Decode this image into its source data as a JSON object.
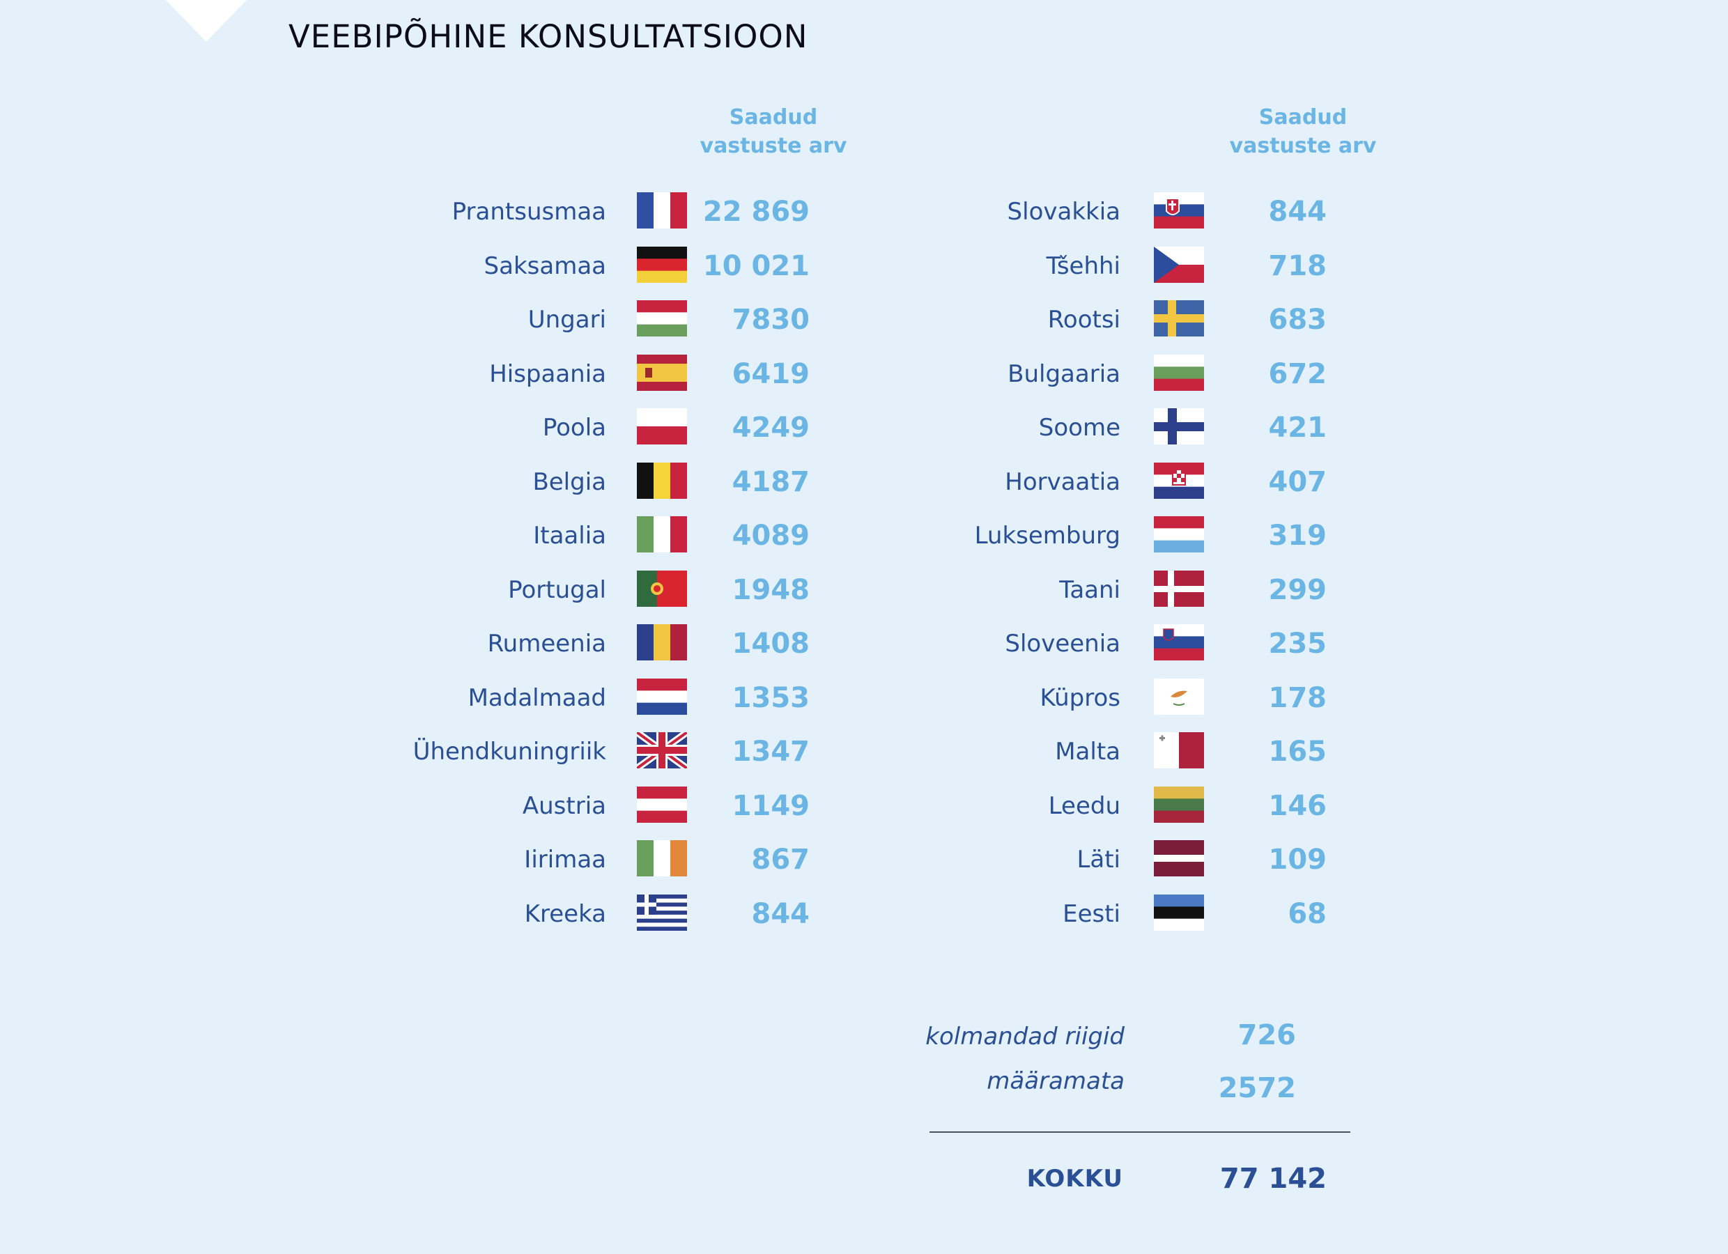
{
  "title": "VEEBIPÕHINE KONSULTATSIOON",
  "column_header": {
    "line1": "Saadud",
    "line2": "vastuste arv"
  },
  "left_column": [
    {
      "country": "Prantsusmaa",
      "value": "22 869",
      "flag": "flag-france-icon"
    },
    {
      "country": "Saksamaa",
      "value": "10 021",
      "flag": "flag-germany-icon"
    },
    {
      "country": "Ungari",
      "value": "7830",
      "flag": "flag-hungary-icon"
    },
    {
      "country": "Hispaania",
      "value": "6419",
      "flag": "flag-spain-icon"
    },
    {
      "country": "Poola",
      "value": "4249",
      "flag": "flag-poland-icon"
    },
    {
      "country": "Belgia",
      "value": "4187",
      "flag": "flag-belgium-icon"
    },
    {
      "country": "Itaalia",
      "value": "4089",
      "flag": "flag-italy-icon"
    },
    {
      "country": "Portugal",
      "value": "1948",
      "flag": "flag-portugal-icon"
    },
    {
      "country": "Rumeenia",
      "value": "1408",
      "flag": "flag-romania-icon"
    },
    {
      "country": "Madalmaad",
      "value": "1353",
      "flag": "flag-netherlands-icon"
    },
    {
      "country": "Ühendkuningriik",
      "value": "1347",
      "flag": "flag-uk-icon"
    },
    {
      "country": "Austria",
      "value": "1149",
      "flag": "flag-austria-icon"
    },
    {
      "country": "Iirimaa",
      "value": "867",
      "flag": "flag-ireland-icon"
    },
    {
      "country": "Kreeka",
      "value": "844",
      "flag": "flag-greece-icon"
    }
  ],
  "right_column": [
    {
      "country": "Slovakkia",
      "value": "844",
      "flag": "flag-slovakia-icon"
    },
    {
      "country": "Tšehhi",
      "value": "718",
      "flag": "flag-czechia-icon"
    },
    {
      "country": "Rootsi",
      "value": "683",
      "flag": "flag-sweden-icon"
    },
    {
      "country": "Bulgaaria",
      "value": "672",
      "flag": "flag-bulgaria-icon"
    },
    {
      "country": "Soome",
      "value": "421",
      "flag": "flag-finland-icon"
    },
    {
      "country": "Horvaatia",
      "value": "407",
      "flag": "flag-croatia-icon"
    },
    {
      "country": "Luksemburg",
      "value": "319",
      "flag": "flag-luxembourg-icon"
    },
    {
      "country": "Taani",
      "value": "299",
      "flag": "flag-denmark-icon"
    },
    {
      "country": "Sloveenia",
      "value": "235",
      "flag": "flag-slovenia-icon"
    },
    {
      "country": "Küpros",
      "value": "178",
      "flag": "flag-cyprus-icon"
    },
    {
      "country": "Malta",
      "value": "165",
      "flag": "flag-malta-icon"
    },
    {
      "country": "Leedu",
      "value": "146",
      "flag": "flag-lithuania-icon"
    },
    {
      "country": "Läti",
      "value": "109",
      "flag": "flag-latvia-icon"
    },
    {
      "country": "Eesti",
      "value": "68",
      "flag": "flag-estonia-icon"
    }
  ],
  "extras": [
    {
      "label": "kolmandad riigid",
      "value": "726"
    },
    {
      "label": "määramata",
      "value": "2572"
    }
  ],
  "total": {
    "label": "KOKKU",
    "value": "77 142"
  },
  "colors": {
    "background": "#e4f1fb",
    "country_text": "#2a4f94",
    "value_text": "#6bb5e4"
  }
}
